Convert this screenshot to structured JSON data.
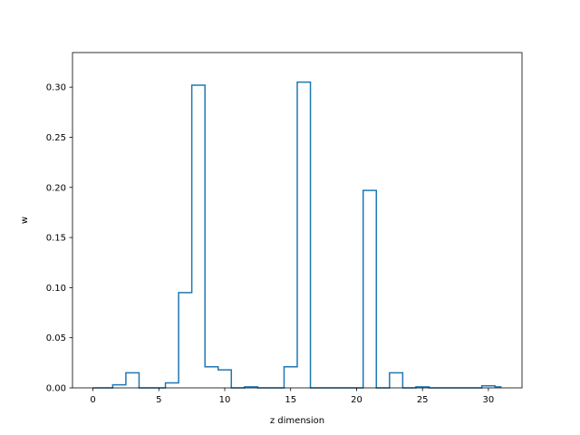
{
  "chart_data": {
    "type": "line",
    "style": "step",
    "xlabel": "z dimension",
    "ylabel": "w",
    "xlim": [
      -1.55,
      32.55
    ],
    "ylim": [
      0,
      0.3345
    ],
    "xticks": [
      0,
      5,
      10,
      15,
      20,
      25,
      30
    ],
    "xtick_labels": [
      "0",
      "5",
      "10",
      "15",
      "20",
      "25",
      "30"
    ],
    "yticks": [
      0.0,
      0.05,
      0.1,
      0.15,
      0.2,
      0.25,
      0.3
    ],
    "ytick_labels": [
      "0.00",
      "0.05",
      "0.10",
      "0.15",
      "0.20",
      "0.25",
      "0.30"
    ],
    "grid": false,
    "color": "#1f77b4",
    "x": [
      0,
      1,
      2,
      3,
      4,
      5,
      6,
      7,
      8,
      9,
      10,
      11,
      12,
      13,
      14,
      15,
      16,
      17,
      18,
      19,
      20,
      21,
      22,
      23,
      24,
      25,
      26,
      27,
      28,
      29,
      30,
      31
    ],
    "y": [
      0.0,
      0.0,
      0.003,
      0.015,
      0.0,
      0.0,
      0.005,
      0.095,
      0.302,
      0.021,
      0.018,
      0.0,
      0.001,
      0.0,
      0.0,
      0.021,
      0.305,
      0.0,
      0.0,
      0.0,
      0.0,
      0.197,
      0.0,
      0.015,
      0.0,
      0.001,
      0.0,
      0.0,
      0.0,
      0.0,
      0.002,
      0.001
    ]
  }
}
